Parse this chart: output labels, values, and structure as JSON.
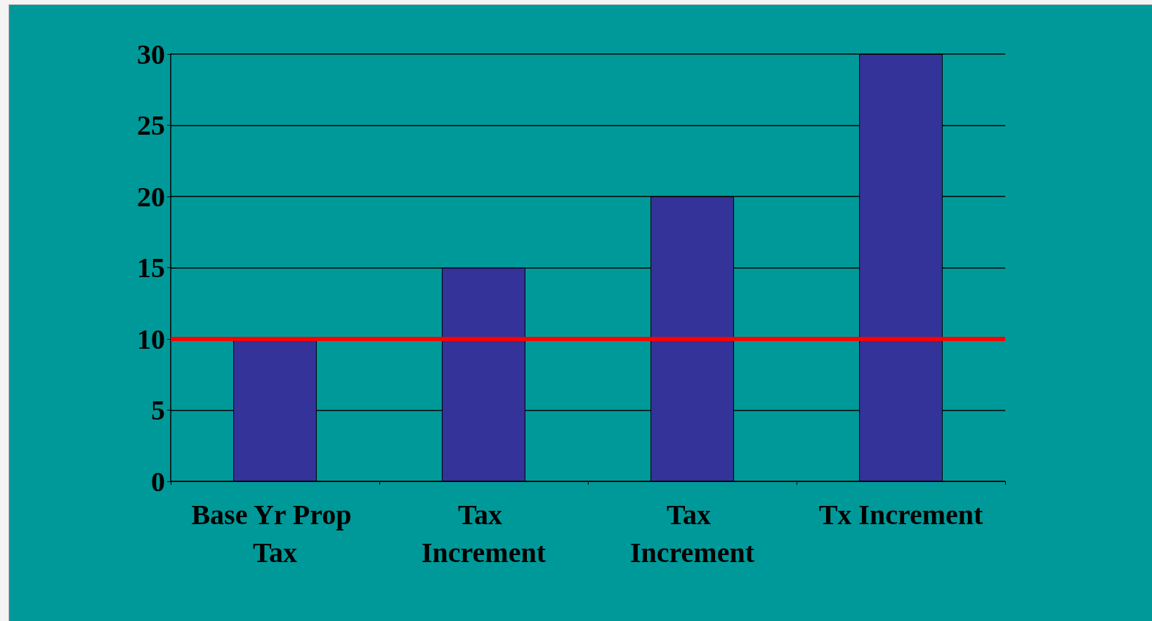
{
  "chart_data": {
    "type": "bar",
    "categories": [
      "Base Yr Prop Tax",
      "Tax Increment",
      "Tax Increment",
      "Tx Increment"
    ],
    "values": [
      10,
      15,
      20,
      30
    ],
    "color": "#333399",
    "ylim": [
      0,
      30
    ],
    "yticks": [
      0,
      5,
      10,
      15,
      20,
      25,
      30
    ],
    "grid": "y",
    "ref_lines": [
      {
        "axis": "y",
        "value": 10,
        "color": "#ff0000"
      }
    ]
  }
}
